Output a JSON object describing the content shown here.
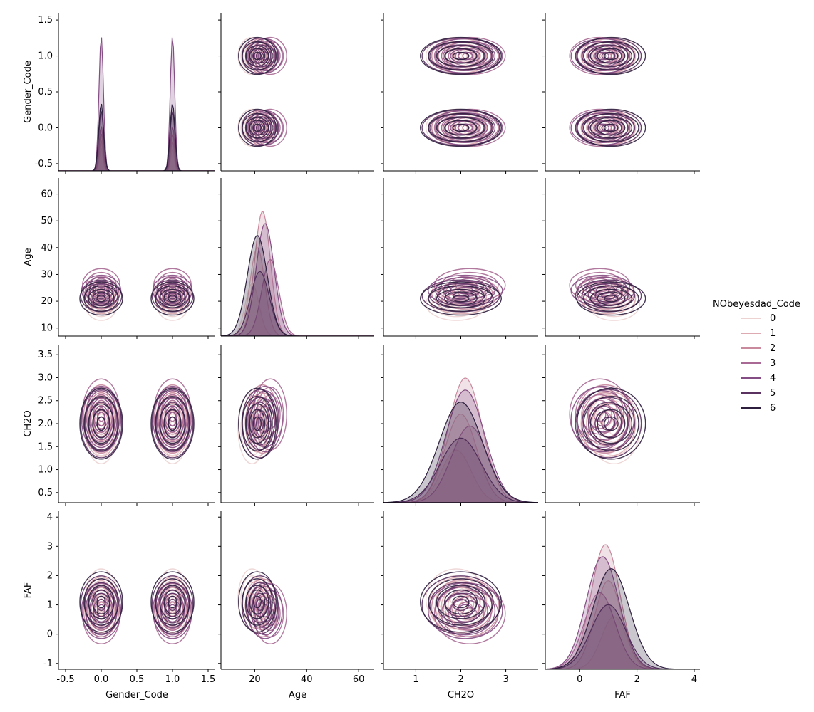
{
  "chart_data": {
    "type": "pairplot-kde",
    "variables": [
      "Gender_Code",
      "Age",
      "CH2O",
      "FAF"
    ],
    "ranges": {
      "Gender_Code": [
        -0.6,
        1.6
      ],
      "Age": [
        7,
        66
      ],
      "CH2O": [
        0.28,
        3.72
      ],
      "FAF": [
        -1.2,
        4.2
      ]
    },
    "ticks": {
      "Gender_Code": [
        "-0.5",
        "0.0",
        "0.5",
        "1.0",
        "1.5"
      ],
      "Age": [
        "20",
        "40",
        "60"
      ],
      "Age_y": [
        "10",
        "20",
        "30",
        "40",
        "50",
        "60"
      ],
      "CH2O": [
        "1",
        "2",
        "3"
      ],
      "CH2O_y": [
        "0.5",
        "1.0",
        "1.5",
        "2.0",
        "2.5",
        "3.0",
        "3.5"
      ],
      "FAF": [
        "0",
        "2",
        "4"
      ],
      "FAF_y": [
        "-1",
        "0",
        "1",
        "2",
        "3",
        "4"
      ]
    },
    "legend": {
      "title": "NObeyesdad_Code",
      "placement": "right",
      "entries": [
        "0",
        "1",
        "2",
        "3",
        "4",
        "5",
        "6"
      ]
    },
    "hue_colors": [
      "#ecd3d1",
      "#dcaab0",
      "#c98a9e",
      "#a86a94",
      "#844d83",
      "#5a3160",
      "#2d1e3e"
    ],
    "grid": false
  }
}
